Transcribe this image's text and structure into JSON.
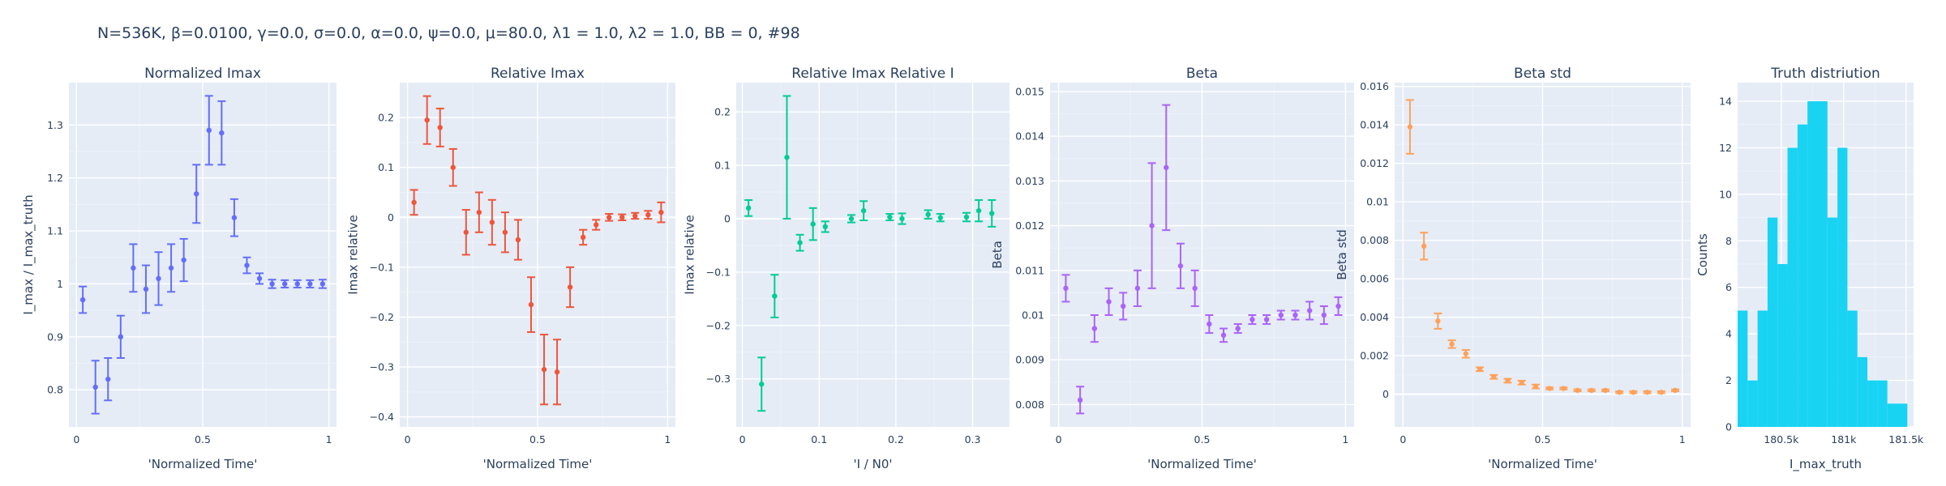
{
  "figure_title": "N=536K, β=0.0100, γ=0.0, σ=0.0,  α=0.0, ψ=0.0, μ=80.0, λ1 = 1.0, λ2 = 1.0, BB = 0, #98",
  "chart_data": [
    {
      "type": "scatter",
      "title": "Normalized Imax",
      "xlabel": "'Normalized Time'",
      "ylabel": "I_max / I_max_truth",
      "color": "#636efa",
      "xlim": [
        -0.03,
        1.03
      ],
      "ylim": [
        0.73,
        1.38
      ],
      "xticks": [
        0,
        0.5,
        1
      ],
      "xtick_labels": [
        "0",
        "0.5",
        "1"
      ],
      "yticks": [
        0.8,
        0.9,
        1.0,
        1.1,
        1.2,
        1.3
      ],
      "ytick_labels": [
        "0.8",
        "0.9",
        "1",
        "1.1",
        "1.2",
        "1.3"
      ],
      "points": [
        {
          "x": 0.025,
          "y": 0.97,
          "err": 0.025
        },
        {
          "x": 0.075,
          "y": 0.805,
          "err": 0.05
        },
        {
          "x": 0.125,
          "y": 0.82,
          "err": 0.04
        },
        {
          "x": 0.175,
          "y": 0.9,
          "err": 0.04
        },
        {
          "x": 0.225,
          "y": 1.03,
          "err": 0.045
        },
        {
          "x": 0.275,
          "y": 0.99,
          "err": 0.045
        },
        {
          "x": 0.325,
          "y": 1.01,
          "err": 0.05
        },
        {
          "x": 0.375,
          "y": 1.03,
          "err": 0.045
        },
        {
          "x": 0.425,
          "y": 1.045,
          "err": 0.04
        },
        {
          "x": 0.475,
          "y": 1.17,
          "err": 0.055
        },
        {
          "x": 0.525,
          "y": 1.29,
          "err": 0.065
        },
        {
          "x": 0.575,
          "y": 1.285,
          "err": 0.06
        },
        {
          "x": 0.625,
          "y": 1.125,
          "err": 0.035
        },
        {
          "x": 0.675,
          "y": 1.035,
          "err": 0.015
        },
        {
          "x": 0.725,
          "y": 1.01,
          "err": 0.01
        },
        {
          "x": 0.775,
          "y": 1.0,
          "err": 0.008
        },
        {
          "x": 0.825,
          "y": 1.0,
          "err": 0.007
        },
        {
          "x": 0.875,
          "y": 1.0,
          "err": 0.007
        },
        {
          "x": 0.925,
          "y": 1.0,
          "err": 0.007
        },
        {
          "x": 0.975,
          "y": 1.0,
          "err": 0.008
        }
      ]
    },
    {
      "type": "scatter",
      "title": "Relative Imax",
      "xlabel": "'Normalized Time'",
      "ylabel": "Imax relative",
      "color": "#ef553b",
      "xlim": [
        -0.03,
        1.03
      ],
      "ylim": [
        -0.42,
        0.27
      ],
      "xticks": [
        0,
        0.5,
        1
      ],
      "xtick_labels": [
        "0",
        "0.5",
        "1"
      ],
      "yticks": [
        -0.4,
        -0.3,
        -0.2,
        -0.1,
        0,
        0.1,
        0.2
      ],
      "ytick_labels": [
        "−0.4",
        "−0.3",
        "−0.2",
        "−0.1",
        "0",
        "0.1",
        "0.2"
      ],
      "points": [
        {
          "x": 0.025,
          "y": 0.03,
          "err": 0.025
        },
        {
          "x": 0.075,
          "y": 0.195,
          "err": 0.048
        },
        {
          "x": 0.125,
          "y": 0.18,
          "err": 0.038
        },
        {
          "x": 0.175,
          "y": 0.1,
          "err": 0.037
        },
        {
          "x": 0.225,
          "y": -0.03,
          "err": 0.045
        },
        {
          "x": 0.275,
          "y": 0.01,
          "err": 0.04
        },
        {
          "x": 0.325,
          "y": -0.01,
          "err": 0.045
        },
        {
          "x": 0.375,
          "y": -0.03,
          "err": 0.04
        },
        {
          "x": 0.425,
          "y": -0.045,
          "err": 0.04
        },
        {
          "x": 0.475,
          "y": -0.175,
          "err": 0.055
        },
        {
          "x": 0.525,
          "y": -0.305,
          "err": 0.07
        },
        {
          "x": 0.575,
          "y": -0.31,
          "err": 0.065
        },
        {
          "x": 0.625,
          "y": -0.14,
          "err": 0.04
        },
        {
          "x": 0.675,
          "y": -0.04,
          "err": 0.015
        },
        {
          "x": 0.725,
          "y": -0.015,
          "err": 0.01
        },
        {
          "x": 0.775,
          "y": 0.0,
          "err": 0.007
        },
        {
          "x": 0.825,
          "y": 0.0,
          "err": 0.006
        },
        {
          "x": 0.875,
          "y": 0.003,
          "err": 0.006
        },
        {
          "x": 0.925,
          "y": 0.005,
          "err": 0.008
        },
        {
          "x": 0.975,
          "y": 0.01,
          "err": 0.02
        }
      ]
    },
    {
      "type": "scatter",
      "title": "Relative Imax Relative I",
      "xlabel": "'I / N0'",
      "ylabel": "Imax relative",
      "color": "#00cc96",
      "xlim": [
        -0.008,
        0.348
      ],
      "ylim": [
        -0.39,
        0.255
      ],
      "xticks": [
        0,
        0.1,
        0.2,
        0.3
      ],
      "xtick_labels": [
        "0",
        "0.1",
        "0.2",
        "0.3"
      ],
      "yticks": [
        -0.3,
        -0.2,
        -0.1,
        0,
        0.1,
        0.2
      ],
      "ytick_labels": [
        "−0.3",
        "−0.2",
        "−0.1",
        "0",
        "0.1",
        "0.2"
      ],
      "points": [
        {
          "x": 0.008,
          "y": 0.02,
          "err": 0.015
        },
        {
          "x": 0.025,
          "y": -0.31,
          "err": 0.05
        },
        {
          "x": 0.042,
          "y": -0.145,
          "err": 0.04
        },
        {
          "x": 0.058,
          "y": 0.115,
          "err": 0.115
        },
        {
          "x": 0.075,
          "y": -0.045,
          "err": 0.015
        },
        {
          "x": 0.092,
          "y": -0.01,
          "err": 0.03
        },
        {
          "x": 0.108,
          "y": -0.015,
          "err": 0.01
        },
        {
          "x": 0.142,
          "y": 0.0,
          "err": 0.007
        },
        {
          "x": 0.158,
          "y": 0.015,
          "err": 0.018
        },
        {
          "x": 0.192,
          "y": 0.003,
          "err": 0.006
        },
        {
          "x": 0.208,
          "y": 0.0,
          "err": 0.01
        },
        {
          "x": 0.242,
          "y": 0.008,
          "err": 0.008
        },
        {
          "x": 0.258,
          "y": 0.002,
          "err": 0.007
        },
        {
          "x": 0.292,
          "y": 0.003,
          "err": 0.008
        },
        {
          "x": 0.308,
          "y": 0.015,
          "err": 0.02
        },
        {
          "x": 0.325,
          "y": 0.01,
          "err": 0.025
        }
      ]
    },
    {
      "type": "scatter",
      "title": "Beta",
      "xlabel": "'Normalized Time'",
      "ylabel": "Beta",
      "color": "#ab63fa",
      "xlim": [
        -0.03,
        1.03
      ],
      "ylim": [
        0.0075,
        0.0152
      ],
      "xticks": [
        0,
        0.5,
        1
      ],
      "xtick_labels": [
        "0",
        "0.5",
        "1"
      ],
      "yticks": [
        0.008,
        0.009,
        0.01,
        0.011,
        0.012,
        0.013,
        0.014,
        0.015
      ],
      "ytick_labels": [
        "0.008",
        "0.009",
        "0.01",
        "0.011",
        "0.012",
        "0.013",
        "0.014",
        "0.015"
      ],
      "points": [
        {
          "x": 0.025,
          "y": 0.0106,
          "err": 0.0003
        },
        {
          "x": 0.075,
          "y": 0.0081,
          "err": 0.0003
        },
        {
          "x": 0.125,
          "y": 0.0097,
          "err": 0.0003
        },
        {
          "x": 0.175,
          "y": 0.0103,
          "err": 0.0003
        },
        {
          "x": 0.225,
          "y": 0.0102,
          "err": 0.0003
        },
        {
          "x": 0.275,
          "y": 0.0106,
          "err": 0.0004
        },
        {
          "x": 0.325,
          "y": 0.012,
          "err": 0.0014
        },
        {
          "x": 0.375,
          "y": 0.0133,
          "err": 0.0014
        },
        {
          "x": 0.425,
          "y": 0.0111,
          "err": 0.0005
        },
        {
          "x": 0.475,
          "y": 0.0106,
          "err": 0.0004
        },
        {
          "x": 0.525,
          "y": 0.0098,
          "err": 0.0002
        },
        {
          "x": 0.575,
          "y": 0.00955,
          "err": 0.00015
        },
        {
          "x": 0.625,
          "y": 0.0097,
          "err": 0.0001
        },
        {
          "x": 0.675,
          "y": 0.0099,
          "err": 0.0001
        },
        {
          "x": 0.725,
          "y": 0.0099,
          "err": 0.0001
        },
        {
          "x": 0.775,
          "y": 0.01,
          "err": 0.0001
        },
        {
          "x": 0.825,
          "y": 0.01,
          "err": 0.0001
        },
        {
          "x": 0.875,
          "y": 0.0101,
          "err": 0.0002
        },
        {
          "x": 0.925,
          "y": 0.01,
          "err": 0.0002
        },
        {
          "x": 0.975,
          "y": 0.0102,
          "err": 0.0002
        }
      ]
    },
    {
      "type": "scatter",
      "title": "Beta std",
      "xlabel": "'Normalized Time'",
      "ylabel": "Beta std",
      "color": "#ffa15a",
      "xlim": [
        -0.03,
        1.03
      ],
      "ylim": [
        -0.0017,
        0.0162
      ],
      "xticks": [
        0,
        0.5,
        1
      ],
      "xtick_labels": [
        "0",
        "0.5",
        "1"
      ],
      "yticks": [
        0,
        0.002,
        0.004,
        0.006,
        0.008,
        0.01,
        0.012,
        0.014,
        0.016
      ],
      "ytick_labels": [
        "0",
        "0.002",
        "0.004",
        "0.006",
        "0.008",
        "0.01",
        "0.012",
        "0.014",
        "0.016"
      ],
      "points": [
        {
          "x": 0.025,
          "y": 0.0139,
          "err": 0.0014
        },
        {
          "x": 0.075,
          "y": 0.0077,
          "err": 0.0007
        },
        {
          "x": 0.125,
          "y": 0.0038,
          "err": 0.0004
        },
        {
          "x": 0.175,
          "y": 0.0026,
          "err": 0.0002
        },
        {
          "x": 0.225,
          "y": 0.0021,
          "err": 0.0002
        },
        {
          "x": 0.275,
          "y": 0.0013,
          "err": 0.0001
        },
        {
          "x": 0.325,
          "y": 0.0009,
          "err": 0.0001
        },
        {
          "x": 0.375,
          "y": 0.0007,
          "err": 0.0001
        },
        {
          "x": 0.425,
          "y": 0.0006,
          "err": 0.0001
        },
        {
          "x": 0.475,
          "y": 0.0004,
          "err": 0.0001
        },
        {
          "x": 0.525,
          "y": 0.0003,
          "err": 5e-05
        },
        {
          "x": 0.575,
          "y": 0.0003,
          "err": 5e-05
        },
        {
          "x": 0.625,
          "y": 0.0002,
          "err": 5e-05
        },
        {
          "x": 0.675,
          "y": 0.0002,
          "err": 5e-05
        },
        {
          "x": 0.725,
          "y": 0.0002,
          "err": 5e-05
        },
        {
          "x": 0.775,
          "y": 0.0001,
          "err": 5e-05
        },
        {
          "x": 0.825,
          "y": 0.0001,
          "err": 5e-05
        },
        {
          "x": 0.875,
          "y": 0.0001,
          "err": 5e-05
        },
        {
          "x": 0.925,
          "y": 0.0001,
          "err": 5e-05
        },
        {
          "x": 0.975,
          "y": 0.0002,
          "err": 5e-05
        }
      ]
    },
    {
      "type": "histogram",
      "title": "Truth distriution",
      "xlabel": "I_max_truth",
      "ylabel": "Counts",
      "color": "#19d3f3",
      "xlim": [
        180150,
        181560
      ],
      "ylim": [
        0,
        14.8
      ],
      "xticks": [
        180500,
        181000,
        181500
      ],
      "xtick_labels": [
        "180.5k",
        "181k",
        "181.5k"
      ],
      "yticks": [
        0,
        2,
        4,
        6,
        8,
        10,
        12,
        14
      ],
      "ytick_labels": [
        "0",
        "2",
        "4",
        "6",
        "8",
        "10",
        "12",
        "14"
      ],
      "bin_width": 80,
      "bins": [
        {
          "start": 180150,
          "count": 5
        },
        {
          "start": 180230,
          "count": 2
        },
        {
          "start": 180310,
          "count": 5
        },
        {
          "start": 180390,
          "count": 9
        },
        {
          "start": 180470,
          "count": 7
        },
        {
          "start": 180550,
          "count": 12
        },
        {
          "start": 180630,
          "count": 13
        },
        {
          "start": 180710,
          "count": 14
        },
        {
          "start": 180790,
          "count": 14
        },
        {
          "start": 180870,
          "count": 9
        },
        {
          "start": 180950,
          "count": 12
        },
        {
          "start": 181030,
          "count": 5
        },
        {
          "start": 181110,
          "count": 3
        },
        {
          "start": 181190,
          "count": 2
        },
        {
          "start": 181270,
          "count": 2
        },
        {
          "start": 181350,
          "count": 1
        },
        {
          "start": 181430,
          "count": 1
        }
      ]
    }
  ]
}
